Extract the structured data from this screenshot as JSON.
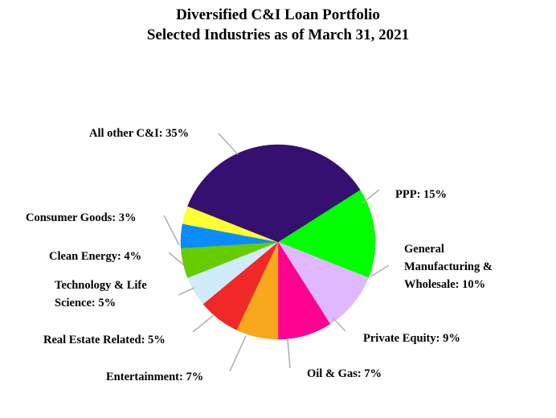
{
  "chart_data": {
    "type": "pie",
    "title": "Diversified C&I Loan Portfolio",
    "subtitle": "Selected Industries as of March 31, 2021",
    "slices": [
      {
        "key": "ppp",
        "label": [
          "PPP: 15%"
        ],
        "value": 15,
        "color": "#00ff00"
      },
      {
        "key": "general-manufacturing",
        "label": [
          "General",
          "Manufacturing &",
          "Wholesale: 10%"
        ],
        "value": 10,
        "color": "#e0b8ff"
      },
      {
        "key": "private-equity",
        "label": [
          "Private Equity: 9%"
        ],
        "value": 9,
        "color": "#ff0090"
      },
      {
        "key": "oil-gas",
        "label": [
          "Oil & Gas: 7%"
        ],
        "value": 7,
        "color": "#f8a81c"
      },
      {
        "key": "entertainment",
        "label": [
          "Entertainment: 7%"
        ],
        "value": 7,
        "color": "#f02828"
      },
      {
        "key": "real-estate",
        "label": [
          "Real Estate Related: 5%"
        ],
        "value": 5,
        "color": "#d0ecfa"
      },
      {
        "key": "technology-life-science",
        "label": [
          "Technology & Life",
          "Science: 5%"
        ],
        "value": 5,
        "color": "#66cc00"
      },
      {
        "key": "clean-energy",
        "label": [
          "Clean Energy: 4%"
        ],
        "value": 4,
        "color": "#0a8cff"
      },
      {
        "key": "consumer-goods",
        "label": [
          "Consumer Goods: 3%"
        ],
        "value": 3,
        "color": "#ffff33"
      },
      {
        "key": "all-other",
        "label": [
          "All other C&I: 35%"
        ],
        "value": 35,
        "color": "#361070"
      }
    ],
    "start_angle_deg": 57.6,
    "direction": "clockwise"
  }
}
